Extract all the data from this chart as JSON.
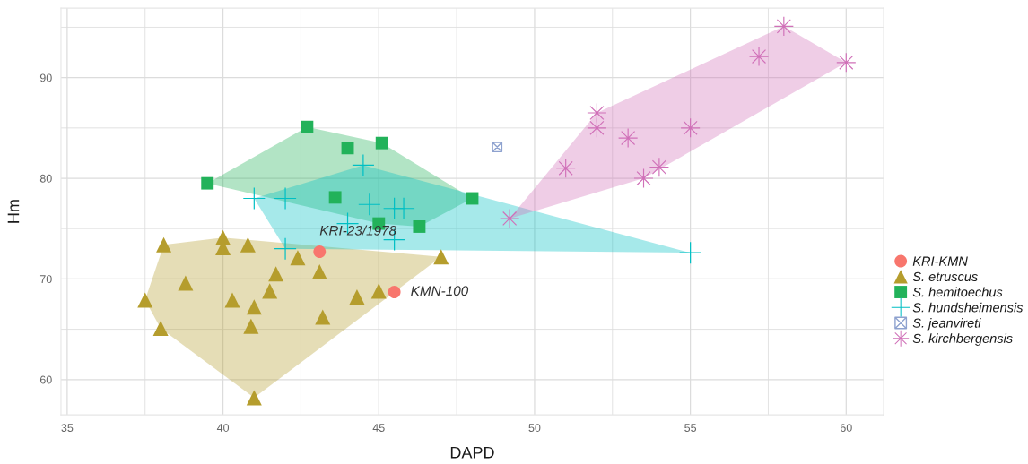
{
  "chart_data": {
    "type": "scatter",
    "xlabel": "DAPD",
    "ylabel": "Hm",
    "xlim": [
      34.8,
      61.2
    ],
    "ylim": [
      56.5,
      96.9
    ],
    "xticks": [
      35,
      {
        "value": 37.5,
        "label": null
      },
      40,
      {
        "value": 42.5,
        "label": null
      },
      45,
      {
        "value": 47.5,
        "label": null
      },
      50,
      {
        "value": 52.5,
        "label": null
      },
      55,
      {
        "value": 57.5,
        "label": null
      },
      60
    ],
    "yticks": [
      60,
      {
        "value": 65,
        "label": null
      },
      70,
      {
        "value": 75,
        "label": null
      },
      80,
      {
        "value": 85,
        "label": null
      },
      90,
      {
        "value": 95,
        "label": null
      }
    ],
    "grid": true,
    "legend": "right",
    "series": [
      {
        "name": "KRI-KMN",
        "color": "#F8766D",
        "marker": "circle",
        "x": [
          43.1,
          45.5
        ],
        "values": [
          72.7,
          68.7
        ]
      },
      {
        "name": "S. etruscus",
        "color": "#B59D2D",
        "marker": "triangle",
        "x": [
          38.1,
          40.0,
          40.0,
          40.8,
          42.4,
          43.1,
          41.7,
          38.8,
          41.5,
          40.3,
          37.5,
          41.0,
          38.0,
          40.9,
          43.2,
          44.3,
          45.0,
          41.0,
          47.0
        ],
        "values": [
          73.4,
          74.1,
          73.1,
          73.4,
          72.1,
          70.7,
          70.5,
          69.6,
          68.8,
          67.9,
          67.9,
          67.2,
          65.1,
          65.3,
          66.2,
          68.2,
          68.8,
          58.2,
          72.2
        ]
      },
      {
        "name": "S. hemitoechus",
        "color": "#22B25A",
        "marker": "square",
        "x": [
          39.5,
          42.7,
          44.0,
          45.1,
          43.6,
          48.0,
          45.0,
          46.3
        ],
        "values": [
          79.5,
          85.1,
          83.0,
          83.5,
          78.1,
          78.0,
          75.5,
          75.2
        ]
      },
      {
        "name": "S. hundsheimensis",
        "color": "#00BFC4",
        "marker": "cross",
        "x": [
          44.5,
          41.0,
          42.0,
          44.7,
          44.0,
          42.0,
          45.5,
          45.8,
          45.5,
          55.0
        ],
        "values": [
          81.3,
          78.0,
          78.0,
          77.4,
          75.5,
          73.0,
          77.0,
          77.0,
          73.9,
          72.6
        ]
      },
      {
        "name": "S. jeanvireti",
        "color": "#8EA2CF",
        "x": [
          48.8
        ],
        "values": [
          83.1
        ]
      },
      {
        "name": "S. kirchbergensis",
        "color": "#D070B8",
        "marker": "star",
        "x": [
          49.2,
          51.0,
          52.0,
          52.0,
          53.0,
          53.5,
          54.0,
          55.0,
          57.2,
          58.0,
          60.0
        ],
        "values": [
          76.0,
          81.0,
          86.5,
          85.0,
          84.0,
          80.0,
          81.1,
          85.0,
          92.1,
          95.1,
          91.5
        ]
      }
    ],
    "annotations": [
      {
        "text": "KRI-23/1978",
        "x": 43.1,
        "y": 72.7
      },
      {
        "text": "KMN-100",
        "x": 45.5,
        "y": 68.7
      }
    ]
  }
}
